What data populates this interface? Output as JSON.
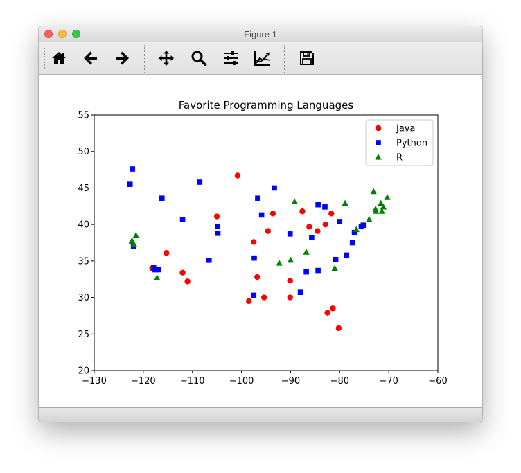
{
  "window": {
    "title": "Figure 1"
  },
  "toolbar": {
    "buttons": [
      {
        "name": "home-button",
        "icon": "home-icon"
      },
      {
        "name": "back-button",
        "icon": "arrow-left-icon"
      },
      {
        "name": "forward-button",
        "icon": "arrow-right-icon"
      },
      {
        "name": "pan-button",
        "icon": "move-icon"
      },
      {
        "name": "zoom-button",
        "icon": "magnifier-icon"
      },
      {
        "name": "subplots-button",
        "icon": "sliders-icon"
      },
      {
        "name": "axes-edit-button",
        "icon": "line-chart-icon"
      },
      {
        "name": "save-button",
        "icon": "floppy-disk-icon"
      }
    ]
  },
  "colors": {
    "java": "#ff0000",
    "python": "#0000ff",
    "r": "#008000"
  },
  "chart_data": {
    "type": "scatter",
    "title": "Favorite Programming Languages",
    "xlabel": "",
    "ylabel": "",
    "xlim": [
      -130,
      -60
    ],
    "ylim": [
      20,
      55
    ],
    "xticks": [
      -130,
      -120,
      -110,
      -100,
      -90,
      -80,
      -70,
      -60
    ],
    "yticks": [
      20,
      25,
      30,
      35,
      40,
      45,
      50,
      55
    ],
    "xtick_labels": [
      "−130",
      "−120",
      "−110",
      "−100",
      "−90",
      "−80",
      "−70",
      "−60"
    ],
    "ytick_labels": [
      "20",
      "25",
      "30",
      "35",
      "40",
      "45",
      "50",
      "55"
    ],
    "grid": false,
    "legend": "top-right",
    "series": [
      {
        "name": "Java",
        "marker": "circle",
        "color": "#ff0000",
        "points": [
          [
            -100.8,
            46.7
          ],
          [
            -105.0,
            41.1
          ],
          [
            -115.3,
            36.1
          ],
          [
            -112.0,
            33.4
          ],
          [
            -111.0,
            32.2
          ],
          [
            -118.2,
            34.0
          ],
          [
            -97.5,
            37.6
          ],
          [
            -93.6,
            41.5
          ],
          [
            -94.6,
            39.1
          ],
          [
            -87.6,
            41.8
          ],
          [
            -86.2,
            39.7
          ],
          [
            -84.5,
            39.1
          ],
          [
            -82.9,
            40.0
          ],
          [
            -81.7,
            41.5
          ],
          [
            -96.8,
            32.8
          ],
          [
            -98.5,
            29.5
          ],
          [
            -95.4,
            30.0
          ],
          [
            -90.1,
            30.0
          ],
          [
            -90.1,
            32.3
          ],
          [
            -82.5,
            27.9
          ],
          [
            -81.4,
            28.5
          ],
          [
            -80.2,
            25.8
          ]
        ]
      },
      {
        "name": "Python",
        "marker": "square",
        "color": "#0000ff",
        "points": [
          [
            -122.2,
            47.6
          ],
          [
            -122.7,
            45.5
          ],
          [
            -116.2,
            43.6
          ],
          [
            -112.0,
            40.7
          ],
          [
            -108.5,
            45.8
          ],
          [
            -104.9,
            39.7
          ],
          [
            -104.8,
            38.8
          ],
          [
            -106.6,
            35.1
          ],
          [
            -117.6,
            33.8
          ],
          [
            -117.9,
            34.1
          ],
          [
            -116.9,
            33.8
          ],
          [
            -122.0,
            37.0
          ],
          [
            -96.7,
            43.6
          ],
          [
            -95.9,
            41.3
          ],
          [
            -93.3,
            45.0
          ],
          [
            -90.1,
            38.7
          ],
          [
            -85.7,
            38.2
          ],
          [
            -84.4,
            42.7
          ],
          [
            -83.0,
            42.4
          ],
          [
            -80.0,
            40.4
          ],
          [
            -77.0,
            38.9
          ],
          [
            -77.4,
            37.5
          ],
          [
            -75.6,
            39.7
          ],
          [
            -75.2,
            39.9
          ],
          [
            -78.6,
            35.8
          ],
          [
            -80.8,
            35.2
          ],
          [
            -84.4,
            33.7
          ],
          [
            -86.8,
            33.5
          ],
          [
            -88.0,
            30.7
          ],
          [
            -97.4,
            35.4
          ],
          [
            -97.5,
            30.3
          ]
        ]
      },
      {
        "name": "R",
        "marker": "triangle",
        "color": "#008000",
        "points": [
          [
            -122.3,
            37.8
          ],
          [
            -122.4,
            37.6
          ],
          [
            -121.9,
            37.3
          ],
          [
            -121.5,
            38.5
          ],
          [
            -117.2,
            32.7
          ],
          [
            -89.2,
            43.1
          ],
          [
            -78.9,
            42.9
          ],
          [
            -73.1,
            44.5
          ],
          [
            -72.6,
            41.8
          ],
          [
            -72.7,
            42.1
          ],
          [
            -71.6,
            42.9
          ],
          [
            -71.1,
            42.4
          ],
          [
            -70.3,
            43.7
          ],
          [
            -71.4,
            41.8
          ],
          [
            -74.0,
            40.7
          ],
          [
            -76.6,
            39.3
          ],
          [
            -86.8,
            36.2
          ],
          [
            -90.0,
            35.1
          ],
          [
            -92.3,
            34.7
          ],
          [
            -81.0,
            34.0
          ]
        ]
      }
    ]
  }
}
